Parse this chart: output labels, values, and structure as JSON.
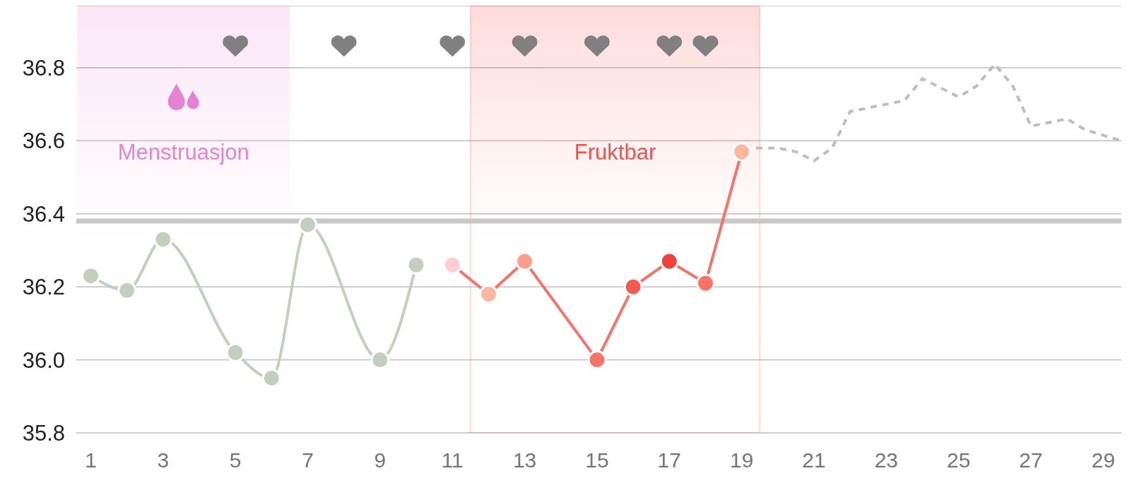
{
  "chart_data": {
    "type": "line",
    "series": [
      {
        "marker": "circle",
        "color": "#c2cfbc",
        "x": [
          1,
          2,
          3,
          4,
          5,
          6,
          7,
          8,
          9,
          10
        ],
        "values": [
          36.23,
          36.19,
          36.33,
          null,
          36.02,
          35.95,
          36.37,
          null,
          36.0,
          36.26
        ],
        "colors": [
          "#c2cfbc",
          "#c2cfbc",
          "#c2cfbc",
          null,
          "#c2cfbc",
          "#c2cfbc",
          "#c2cfbc",
          null,
          "#c2cfbc",
          "#c2cfbc"
        ]
      },
      {
        "marker": "circle",
        "color": "#f87268",
        "x": [
          11,
          12,
          13,
          14,
          15,
          16,
          17,
          18,
          19
        ],
        "values": [
          36.26,
          36.18,
          36.27,
          null,
          36.0,
          36.2,
          36.27,
          36.21,
          36.57
        ],
        "colors": [
          "#ffcdd2",
          "#ffb59e",
          "#ff9e8a",
          null,
          "#f87268",
          "#f65a50",
          "#f4403c",
          "#f87268",
          "#ffb59e"
        ]
      },
      {
        "color": "#bdbdbd",
        "line_style": "dashed",
        "marker": "none",
        "x": [
          19.4,
          20,
          20.5,
          21,
          21.5,
          22,
          23,
          23.5,
          24,
          25,
          25.5,
          26,
          26.5,
          27,
          28,
          28.5,
          29.5
        ],
        "values": [
          36.58,
          36.58,
          36.57,
          36.545,
          36.58,
          36.68,
          36.7,
          36.71,
          36.77,
          36.72,
          36.75,
          36.81,
          36.75,
          36.64,
          36.66,
          36.63,
          36.6
        ]
      },
      {
        "type": "scatter",
        "color": "#808080",
        "x": [
          5,
          8,
          11,
          13,
          15,
          17,
          18
        ],
        "values": [
          36.86,
          36.86,
          36.86,
          36.86,
          36.86,
          36.86,
          36.86
        ]
      }
    ],
    "xlim": [
      0.6,
      29.5
    ],
    "xticks": [
      1,
      3,
      5,
      7,
      9,
      11,
      13,
      15,
      17,
      19,
      21,
      23,
      25,
      27,
      29
    ],
    "ylim": [
      35.8,
      36.97
    ],
    "yticks": [
      35.8,
      {
        "value": 36,
        "label": "36.0"
      },
      36.2,
      36.4,
      36.6,
      36.8
    ],
    "grid": "y",
    "ref_lines": [
      {
        "axis": "y",
        "value": 36.38,
        "color": "#c8c8c8"
      }
    ],
    "bands": [
      {
        "axis": "x",
        "from": 0.63,
        "to": 6.5,
        "label": "Menstruasjon",
        "color": "#e682d2"
      },
      {
        "axis": "x",
        "from": 11.5,
        "to": 19.5,
        "label": "Fruktbar",
        "color": "#f4524c"
      }
    ]
  }
}
